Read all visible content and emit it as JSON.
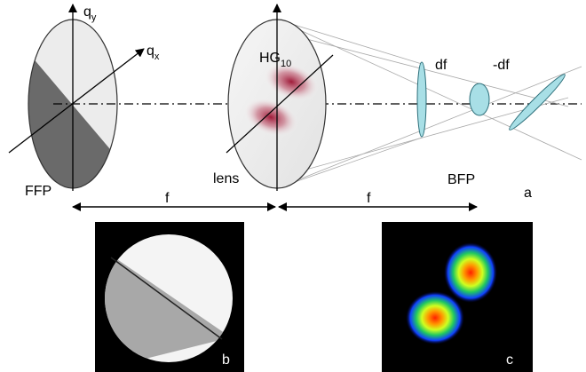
{
  "labels": {
    "qy": {
      "base": "q",
      "sub": "y"
    },
    "qx": {
      "base": "q",
      "sub": "x"
    },
    "ffp": "FFP",
    "lens": "lens",
    "hg": {
      "base": "HG",
      "sub": "10"
    },
    "df": "df",
    "minus_df": "-df",
    "bfp": "BFP",
    "panel_a": "a",
    "f_left": "f",
    "f_right": "f",
    "panel_b": "b",
    "panel_c": "c"
  }
}
